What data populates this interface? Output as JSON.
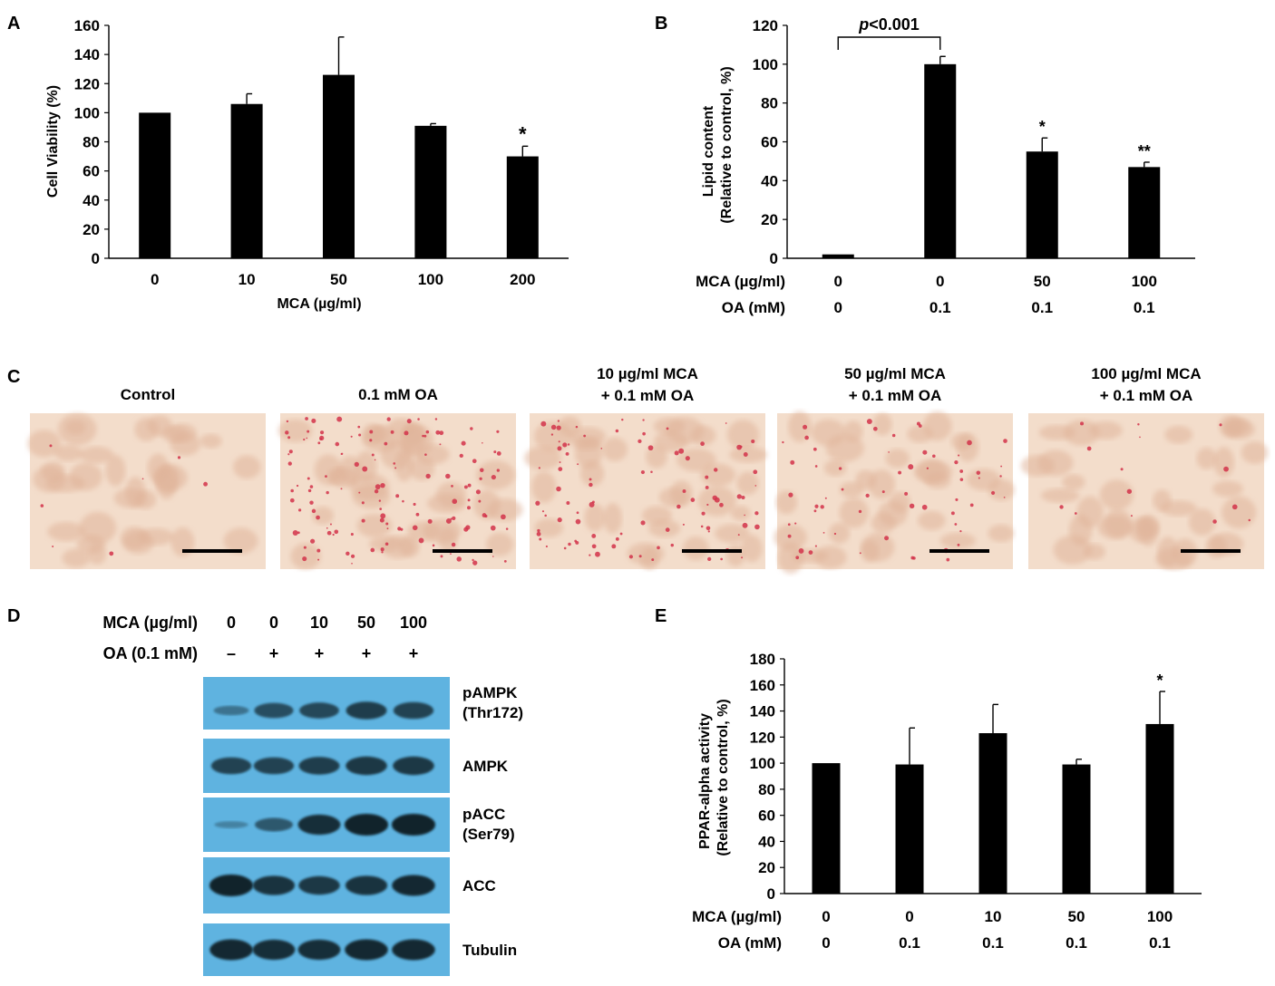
{
  "panels": {
    "A": "A",
    "B": "B",
    "C": "C",
    "D": "D",
    "E": "E"
  },
  "chart_data": [
    {
      "panel": "A",
      "type": "bar",
      "categories": [
        "0",
        "10",
        "50",
        "100",
        "200"
      ],
      "values": [
        100,
        106,
        126,
        91,
        70
      ],
      "errors": [
        0,
        7,
        26,
        1.5,
        7
      ],
      "significance": [
        "",
        "",
        "",
        "",
        "*"
      ],
      "xlabel": "MCA (µg/ml)",
      "ylabel": "Cell Viability (%)",
      "ylim": [
        0,
        160
      ],
      "yticks": [
        0,
        20,
        40,
        60,
        80,
        100,
        120,
        140,
        160
      ],
      "grid": false,
      "color": "#000000"
    },
    {
      "panel": "B",
      "type": "bar",
      "categories": [
        "1",
        "2",
        "3",
        "4"
      ],
      "values": [
        2,
        100,
        55,
        47
      ],
      "errors": [
        0.5,
        4,
        7,
        2.5
      ],
      "significance": [
        "",
        "",
        "*",
        "**"
      ],
      "rows": [
        {
          "label": "MCA (µg/ml)",
          "values": [
            "0",
            "0",
            "50",
            "100"
          ]
        },
        {
          "label": "OA (mM)",
          "values": [
            "0",
            "0.1",
            "0.1",
            "0.1"
          ]
        }
      ],
      "bracket": {
        "from": 0,
        "to": 1,
        "label": "p<0.001"
      },
      "ylabel_line1": "Lipid content",
      "ylabel_line2": "(Relative to control, %)",
      "ylim": [
        0,
        120
      ],
      "yticks": [
        0,
        20,
        40,
        60,
        80,
        100,
        120
      ],
      "grid": false,
      "color": "#000000"
    },
    {
      "panel": "E",
      "type": "bar",
      "categories": [
        "1",
        "2",
        "3",
        "4",
        "5"
      ],
      "values": [
        100,
        99,
        123,
        99,
        130
      ],
      "errors": [
        0.5,
        28,
        22,
        4,
        25
      ],
      "significance": [
        "",
        "",
        "",
        "",
        "*"
      ],
      "rows": [
        {
          "label": "MCA (µg/ml)",
          "values": [
            "0",
            "0",
            "10",
            "50",
            "100"
          ]
        },
        {
          "label": "OA (mM)",
          "values": [
            "0",
            "0.1",
            "0.1",
            "0.1",
            "0.1"
          ]
        }
      ],
      "ylabel_line1": "PPAR-alpha activity",
      "ylabel_line2": "(Relative to control, %)",
      "ylim": [
        0,
        180
      ],
      "yticks": [
        0,
        20,
        40,
        60,
        80,
        100,
        120,
        140,
        160,
        180
      ],
      "grid": false,
      "color": "#000000"
    }
  ],
  "micrographs": [
    {
      "title": "Control",
      "stain": 0.05
    },
    {
      "title": "0.1 mM OA",
      "stain": 1.0
    },
    {
      "title": "10 µg/ml MCA\n+ 0.1 mM OA",
      "stain": 0.7
    },
    {
      "title": "50 µg/ml MCA\n+ 0.1 mM OA",
      "stain": 0.45
    },
    {
      "title": "100 µg/ml MCA\n+ 0.1 mM OA",
      "stain": 0.1
    }
  ],
  "blot": {
    "mca_label": "MCA (µg/ml)",
    "oa_label": "OA (0.1 mM)",
    "mca_values": [
      "0",
      "0",
      "10",
      "50",
      "100"
    ],
    "oa_values": [
      "–",
      "+",
      "+",
      "+",
      "+"
    ],
    "bands": [
      {
        "label": "pAMPK\n(Thr172)",
        "intensity": [
          0.25,
          0.6,
          0.65,
          0.75,
          0.7
        ]
      },
      {
        "label": "AMPK",
        "intensity": [
          0.7,
          0.7,
          0.75,
          0.8,
          0.8
        ]
      },
      {
        "label": "pACC\n(Ser79)",
        "intensity": [
          0.1,
          0.5,
          0.9,
          1.0,
          1.0
        ]
      },
      {
        "label": "ACC",
        "intensity": [
          1.0,
          0.85,
          0.8,
          0.85,
          0.95
        ]
      },
      {
        "label": "Tubulin",
        "intensity": [
          0.95,
          0.9,
          0.9,
          0.95,
          0.95
        ]
      }
    ],
    "background": "#5fb3e0"
  }
}
